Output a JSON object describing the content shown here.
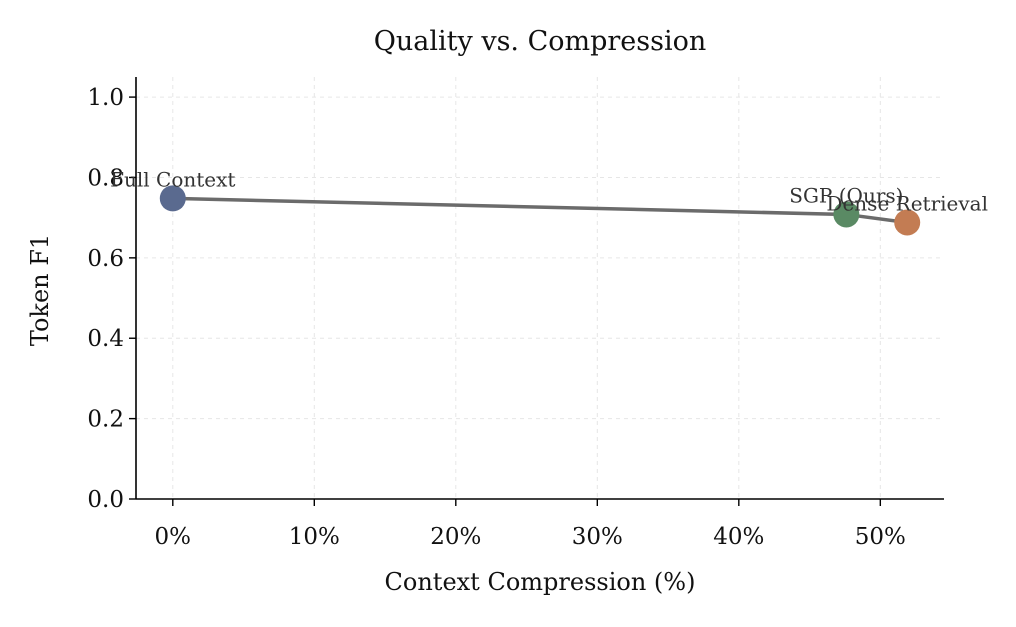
{
  "chart_data": {
    "type": "scatter",
    "title": "Quality vs. Compression",
    "xlabel": "Context Compression (%)",
    "ylabel": "Token F1",
    "xlim": [
      -2.6,
      54.5
    ],
    "ylim": [
      0.0,
      1.05
    ],
    "x_ticks": [
      0,
      10,
      20,
      30,
      40,
      50
    ],
    "x_tick_labels": [
      "0%",
      "10%",
      "20%",
      "30%",
      "40%",
      "50%"
    ],
    "y_ticks": [
      0.0,
      0.2,
      0.4,
      0.6,
      0.8,
      1.0
    ],
    "y_tick_labels": [
      "0.0",
      "0.2",
      "0.4",
      "0.6",
      "0.8",
      "1.0"
    ],
    "grid": true,
    "line_color": "#6b6b6b",
    "points": [
      {
        "label": "Full Context",
        "x": 0.0,
        "y": 0.748,
        "color": "#5a6a8f"
      },
      {
        "label": "SGP (Ours)",
        "x": 47.6,
        "y": 0.708,
        "color": "#5a8a64"
      },
      {
        "label": "Dense Retrieval",
        "x": 51.9,
        "y": 0.688,
        "color": "#c37c53"
      }
    ]
  }
}
